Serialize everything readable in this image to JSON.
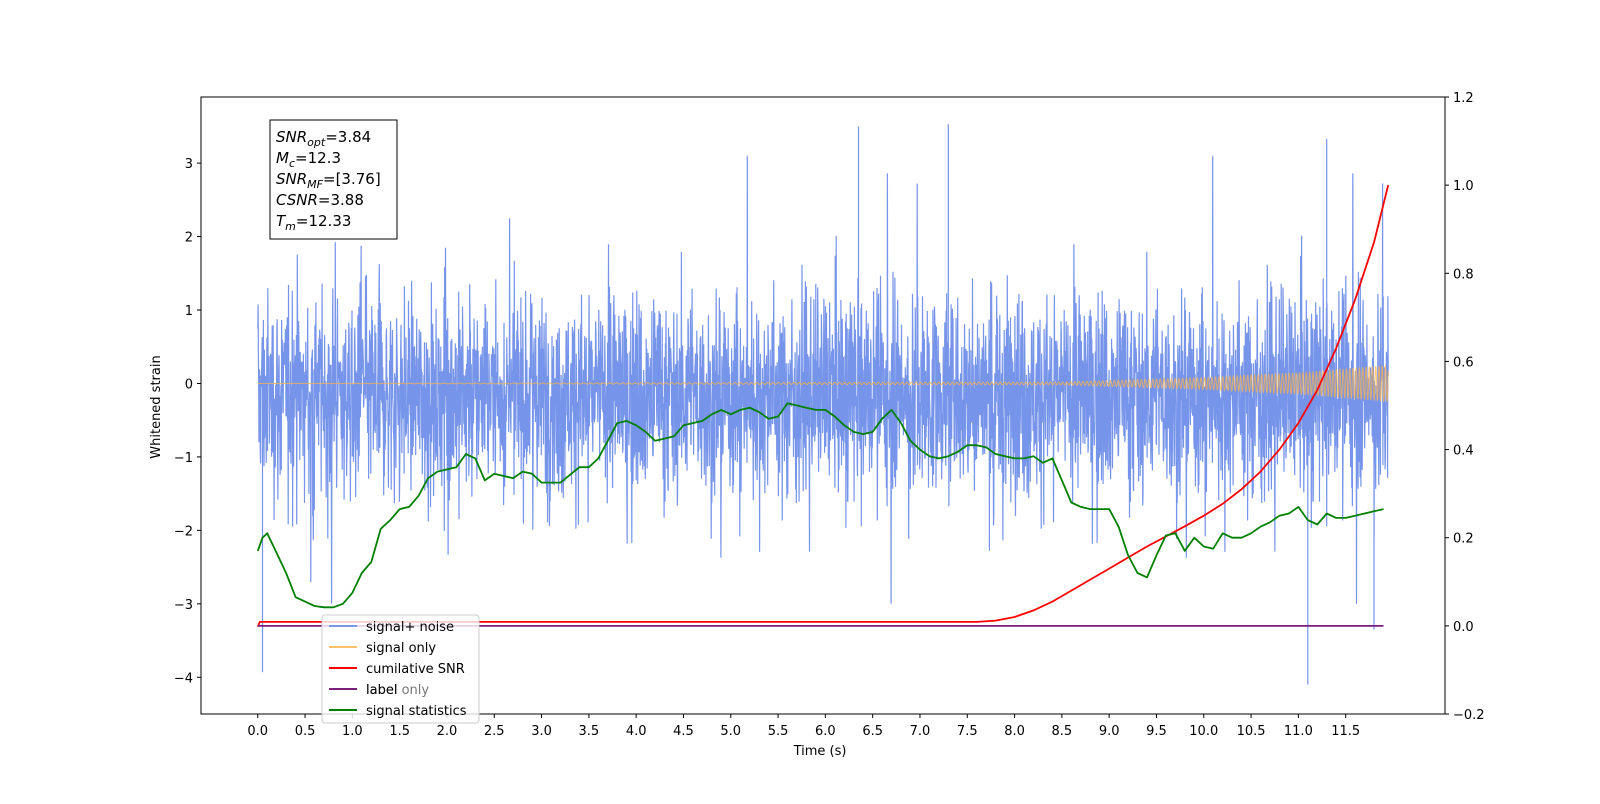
{
  "chart_data": {
    "type": "line",
    "xlabel": "Time (s)",
    "ylabel": "Whitened strain",
    "xlim": [
      -0.6,
      12.55
    ],
    "ylim_left": [
      -4.5,
      3.9
    ],
    "ylim_right": [
      -0.2,
      1.2
    ],
    "x_ticks": [
      0.0,
      0.5,
      1.0,
      1.5,
      2.0,
      2.5,
      3.0,
      3.5,
      4.0,
      4.5,
      5.0,
      5.5,
      6.0,
      6.5,
      7.0,
      7.5,
      8.0,
      8.5,
      9.0,
      9.5,
      10.0,
      10.5,
      11.0,
      11.5
    ],
    "x_tick_labels": [
      "0.0",
      "0.5",
      "1.0",
      "1.5",
      "2.0",
      "2.5",
      "3.0",
      "3.5",
      "4.0",
      "4.5",
      "5.0",
      "5.5",
      "6.0",
      "6.5",
      "7.0",
      "7.5",
      "8.0",
      "8.5",
      "9.0",
      "9.5",
      "10.0",
      "10.5",
      "11.0",
      "11.5"
    ],
    "y_left_ticks": [
      -4,
      -3,
      -2,
      -1,
      0,
      1,
      2,
      3
    ],
    "y_left_tick_labels": [
      "−4",
      "−3",
      "−2",
      "−1",
      "0",
      "1",
      "2",
      "3"
    ],
    "y_right_ticks": [
      -0.2,
      0.0,
      0.2,
      0.4,
      0.6,
      0.8,
      1.0,
      1.2
    ],
    "y_right_tick_labels": [
      "−0.2",
      "0.0",
      "0.2",
      "0.4",
      "0.6",
      "0.8",
      "1.0",
      "1.2"
    ],
    "legend_position": "bottom-left",
    "grid": false,
    "series": [
      {
        "name": "signal+ noise",
        "color": "#6f8ee8",
        "axis": "left",
        "note": "dense noise band, samples from 0.0 to 11.95 s",
        "x_range": [
          0.0,
          11.95
        ],
        "approx_band": [
          -1.8,
          1.4
        ],
        "extremes": [
          [
            0.05,
            -3.93
          ],
          [
            6.35,
            3.5
          ],
          [
            7.3,
            3.53
          ],
          [
            11.1,
            -4.1
          ],
          [
            11.3,
            3.33
          ],
          [
            11.8,
            -3.35
          ]
        ]
      },
      {
        "name": "signal only",
        "color": "#ffb347",
        "axis": "left",
        "note": "chirp with growing amplitude",
        "x_range": [
          0.0,
          11.95
        ],
        "amplitude_points": [
          [
            0.0,
            0.0
          ],
          [
            8.5,
            0.02
          ],
          [
            10.0,
            0.08
          ],
          [
            11.0,
            0.15
          ],
          [
            11.95,
            0.25
          ]
        ]
      },
      {
        "name": "cumilative SNR",
        "color": "#ff0000",
        "axis": "right",
        "x": [
          0.0,
          0.02,
          7.6,
          7.8,
          8.0,
          8.2,
          8.4,
          8.6,
          8.8,
          9.0,
          9.2,
          9.4,
          9.6,
          9.8,
          10.0,
          10.2,
          10.4,
          10.6,
          10.8,
          11.0,
          11.2,
          11.4,
          11.6,
          11.8,
          11.95
        ],
        "y": [
          -0.002,
          0.009,
          0.009,
          0.012,
          0.02,
          0.035,
          0.055,
          0.08,
          0.105,
          0.13,
          0.155,
          0.18,
          0.203,
          0.226,
          0.25,
          0.277,
          0.31,
          0.35,
          0.4,
          0.46,
          0.535,
          0.63,
          0.74,
          0.87,
          1.0
        ]
      },
      {
        "name": "label",
        "color": "#7b1d7b",
        "axis": "right",
        "x": [
          0.0,
          11.9
        ],
        "y": [
          0.0,
          0.0
        ]
      },
      {
        "name": "signal statistics",
        "color": "#008000",
        "axis": "right",
        "x": [
          0.0,
          0.05,
          0.1,
          0.2,
          0.3,
          0.4,
          0.5,
          0.6,
          0.7,
          0.8,
          0.9,
          1.0,
          1.1,
          1.2,
          1.3,
          1.4,
          1.5,
          1.6,
          1.7,
          1.8,
          1.9,
          2.0,
          2.1,
          2.2,
          2.3,
          2.4,
          2.5,
          2.6,
          2.7,
          2.8,
          2.9,
          3.0,
          3.2,
          3.4,
          3.5,
          3.6,
          3.7,
          3.8,
          3.9,
          4.0,
          4.1,
          4.2,
          4.3,
          4.4,
          4.5,
          4.6,
          4.7,
          4.8,
          4.9,
          5.0,
          5.1,
          5.2,
          5.3,
          5.4,
          5.5,
          5.6,
          5.7,
          5.8,
          5.9,
          6.0,
          6.1,
          6.2,
          6.3,
          6.4,
          6.5,
          6.6,
          6.7,
          6.8,
          6.9,
          7.0,
          7.1,
          7.2,
          7.3,
          7.4,
          7.5,
          7.6,
          7.7,
          7.8,
          7.9,
          8.0,
          8.1,
          8.2,
          8.3,
          8.4,
          8.5,
          8.6,
          8.7,
          8.8,
          8.9,
          9.0,
          9.1,
          9.2,
          9.3,
          9.4,
          9.5,
          9.6,
          9.7,
          9.8,
          9.9,
          10.0,
          10.1,
          10.2,
          10.3,
          10.4,
          10.5,
          10.6,
          10.7,
          10.8,
          10.9,
          11.0,
          11.1,
          11.2,
          11.3,
          11.4,
          11.5,
          11.6,
          11.7,
          11.8,
          11.9
        ],
        "y": [
          0.17,
          0.2,
          0.21,
          0.165,
          0.12,
          0.065,
          0.055,
          0.045,
          0.042,
          0.042,
          0.05,
          0.075,
          0.12,
          0.145,
          0.22,
          0.24,
          0.265,
          0.27,
          0.295,
          0.335,
          0.35,
          0.355,
          0.36,
          0.39,
          0.38,
          0.33,
          0.345,
          0.34,
          0.335,
          0.35,
          0.345,
          0.325,
          0.325,
          0.36,
          0.36,
          0.38,
          0.42,
          0.46,
          0.465,
          0.455,
          0.44,
          0.42,
          0.425,
          0.43,
          0.455,
          0.46,
          0.465,
          0.48,
          0.49,
          0.48,
          0.49,
          0.495,
          0.485,
          0.47,
          0.475,
          0.505,
          0.5,
          0.495,
          0.49,
          0.49,
          0.475,
          0.455,
          0.44,
          0.435,
          0.44,
          0.47,
          0.49,
          0.46,
          0.42,
          0.4,
          0.385,
          0.38,
          0.385,
          0.395,
          0.41,
          0.41,
          0.405,
          0.39,
          0.385,
          0.38,
          0.38,
          0.385,
          0.37,
          0.38,
          0.33,
          0.28,
          0.27,
          0.265,
          0.265,
          0.265,
          0.225,
          0.16,
          0.12,
          0.11,
          0.16,
          0.205,
          0.21,
          0.17,
          0.2,
          0.18,
          0.175,
          0.21,
          0.2,
          0.2,
          0.21,
          0.225,
          0.235,
          0.25,
          0.255,
          0.27,
          0.24,
          0.23,
          0.255,
          0.245,
          0.245,
          0.25,
          0.255,
          0.26,
          0.265
        ]
      },
      {
        "name": "label only",
        "note": "legend text partially hidden under the label entry"
      }
    ],
    "annotation_lines": [
      {
        "main": "SNR",
        "sub": "opt",
        "tail": "=3.84"
      },
      {
        "main": "M",
        "sub": "c",
        "tail": "=12.3"
      },
      {
        "main": "SNR",
        "sub": "MF",
        "tail": "=[3.76]"
      },
      {
        "main": "CSNR",
        "sub": "",
        "tail": "=3.88"
      },
      {
        "main": "T",
        "sub": "m",
        "tail": "=12.33"
      }
    ]
  }
}
